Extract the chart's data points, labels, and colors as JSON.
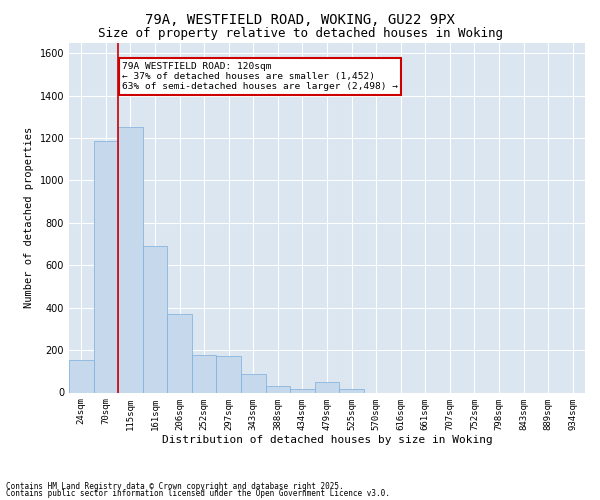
{
  "title_line1": "79A, WESTFIELD ROAD, WOKING, GU22 9PX",
  "title_line2": "Size of property relative to detached houses in Woking",
  "xlabel": "Distribution of detached houses by size in Woking",
  "ylabel": "Number of detached properties",
  "bar_color": "#c5d8ec",
  "bar_edge_color": "#7aaedc",
  "bin_labels": [
    "24sqm",
    "70sqm",
    "115sqm",
    "161sqm",
    "206sqm",
    "252sqm",
    "297sqm",
    "343sqm",
    "388sqm",
    "434sqm",
    "479sqm",
    "525sqm",
    "570sqm",
    "616sqm",
    "661sqm",
    "707sqm",
    "752sqm",
    "798sqm",
    "843sqm",
    "889sqm",
    "934sqm"
  ],
  "bar_heights": [
    155,
    1185,
    1250,
    690,
    370,
    175,
    170,
    85,
    30,
    15,
    50,
    15,
    0,
    0,
    0,
    0,
    0,
    0,
    0,
    0,
    0
  ],
  "annotation_text": "79A WESTFIELD ROAD: 120sqm\n← 37% of detached houses are smaller (1,452)\n63% of semi-detached houses are larger (2,498) →",
  "annotation_box_color": "#ffffff",
  "annotation_box_edge": "#cc0000",
  "vline_color": "#cc0000",
  "ylim": [
    0,
    1650
  ],
  "plot_bg_color": "#dce6f1",
  "grid_color": "#ffffff",
  "footnote1": "Contains HM Land Registry data © Crown copyright and database right 2025.",
  "footnote2": "Contains public sector information licensed under the Open Government Licence v3.0.",
  "title_fontsize": 10,
  "subtitle_fontsize": 9,
  "tick_fontsize": 6.5,
  "label_fontsize": 8,
  "ylabel_fontsize": 7.5
}
